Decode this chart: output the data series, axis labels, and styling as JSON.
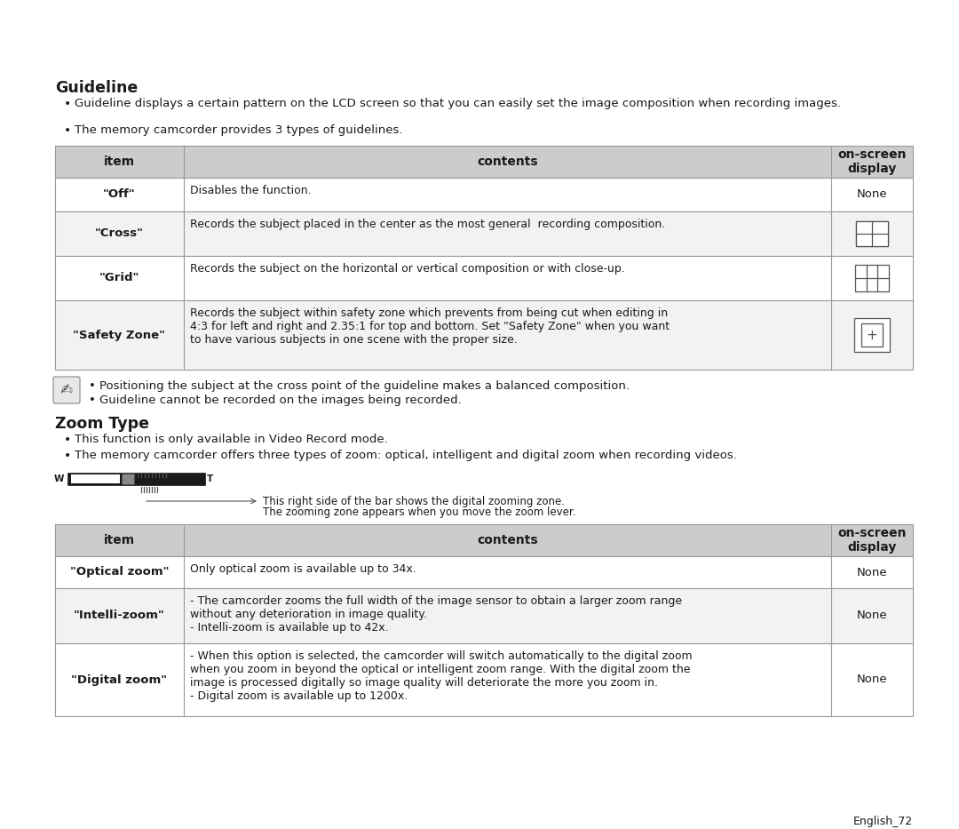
{
  "bg_color": "#ffffff",
  "text_color": "#1a1a1a",
  "header_bg": "#cccccc",
  "row_bg_white": "#ffffff",
  "row_bg_gray": "#f2f2f2",
  "border_color": "#999999",
  "title1": "Guideline",
  "bullets1": [
    "Guideline displays a certain pattern on the LCD screen so that you can easily set the image composition when recording images.",
    "The memory camcorder provides 3 types of guidelines."
  ],
  "table1_header": [
    "item",
    "contents",
    "on-screen\ndisplay"
  ],
  "table1_rows": [
    [
      "\"Off\"",
      "Disables the function.",
      "None",
      38
    ],
    [
      "\"Cross\"",
      "Records the subject placed in the center as the most general  recording composition.",
      "cross",
      50
    ],
    [
      "\"Grid\"",
      "Records the subject on the horizontal or vertical composition or with close-up.",
      "grid",
      50
    ],
    [
      "\"Safety Zone\"",
      "Records the subject within safety zone which prevents from being cut when editing in\n4:3 for left and right and 2.35:1 for top and bottom. Set \"Safety Zone\" when you want\nto have various subjects in one scene with the proper size.",
      "safety",
      78
    ]
  ],
  "note_bullets": [
    "Positioning the subject at the cross point of the guideline makes a balanced composition.",
    "Guideline cannot be recorded on the images being recorded."
  ],
  "title2": "Zoom Type",
  "bullets2": [
    "This function is only available in Video Record mode.",
    "The memory camcorder offers three types of zoom: optical, intelligent and digital zoom when recording videos."
  ],
  "zoom_caption1": "This right side of the bar shows the digital zooming zone.",
  "zoom_caption2": "The zooming zone appears when you move the zoom lever.",
  "table2_header": [
    "item",
    "contents",
    "on-screen\ndisplay"
  ],
  "table2_rows": [
    [
      "\"Optical zoom\"",
      "Only optical zoom is available up to 34x.",
      "None",
      36
    ],
    [
      "\"Intelli-zoom\"",
      "- The camcorder zooms the full width of the image sensor to obtain a larger zoom range\nwithout any deterioration in image quality.\n- Intelli-zoom is available up to 42x.",
      "None",
      62
    ],
    [
      "\"Digital zoom\"",
      "- When this option is selected, the camcorder will switch automatically to the digital zoom\nwhen you zoom in beyond the optical or intelligent zoom range. With the digital zoom the\nimage is processed digitally so image quality will deteriorate the more you zoom in.\n- Digital zoom is available up to 1200x.",
      "None",
      82
    ]
  ],
  "footer": "English_72"
}
